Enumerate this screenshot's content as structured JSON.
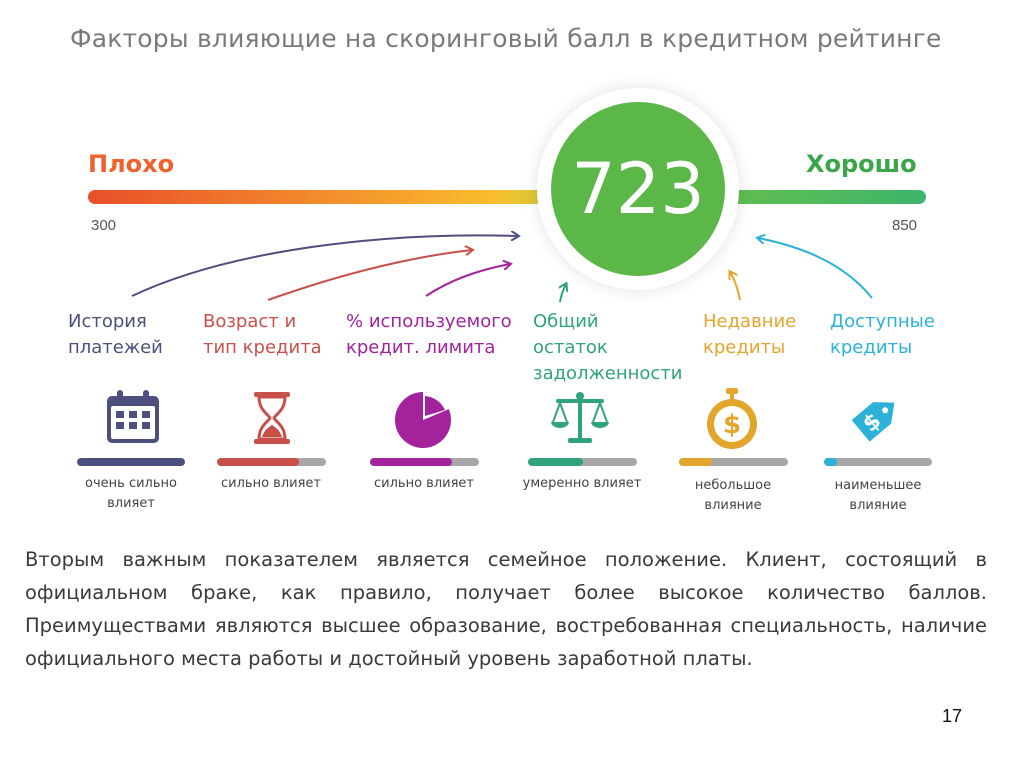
{
  "title": "Факторы влияющие на скоринговый балл в кредитном  рейтинге",
  "scale": {
    "bad_label": "Плохо",
    "good_label": "Хорошо",
    "min": "300",
    "max": "850",
    "score": "723",
    "colors": {
      "bad": "#e84f2a",
      "mid": "#f9bc2d",
      "good": "#3db56a",
      "score_fill": "#5bb848"
    }
  },
  "factors": [
    {
      "name": "История\nплатежей",
      "impact": "очень сильно\nвлияет",
      "impact_level": 1.0,
      "color": "#4d4f7e",
      "icon": "calendar-icon"
    },
    {
      "name": "Возраст и\nтип кредита",
      "impact": "сильно влияет",
      "impact_level": 0.75,
      "color": "#c9504a",
      "icon": "hourglass-icon"
    },
    {
      "name": "% используемого\nкредит. лимита",
      "impact": "сильно влияет",
      "impact_level": 0.75,
      "color": "#a3239d",
      "icon": "pie-chart-icon"
    },
    {
      "name": "Общий\nостаток\nзадолженности",
      "impact": "умеренно влияет",
      "impact_level": 0.5,
      "color": "#2fa37a",
      "icon": "scales-icon"
    },
    {
      "name": "Недавние\nкредиты",
      "impact": "небольшое\nвлияние",
      "impact_level": 0.3,
      "color": "#e3a52b",
      "icon": "stopwatch-dollar-icon"
    },
    {
      "name": "Доступные\nкредиты",
      "impact": "наименьшее\nвлияние",
      "impact_level": 0.12,
      "color": "#2cb2d9",
      "icon": "price-tag-icon"
    }
  ],
  "body_text": "Вторым важным показателем является семейное положение. Клиент, состоящий в официальном браке, как правило, получает более высокое количество баллов. Преимуществами являются высшее образование, востребованная специальность, наличие официального места работы и достойный уровень заработной платы.",
  "page_number": "17"
}
